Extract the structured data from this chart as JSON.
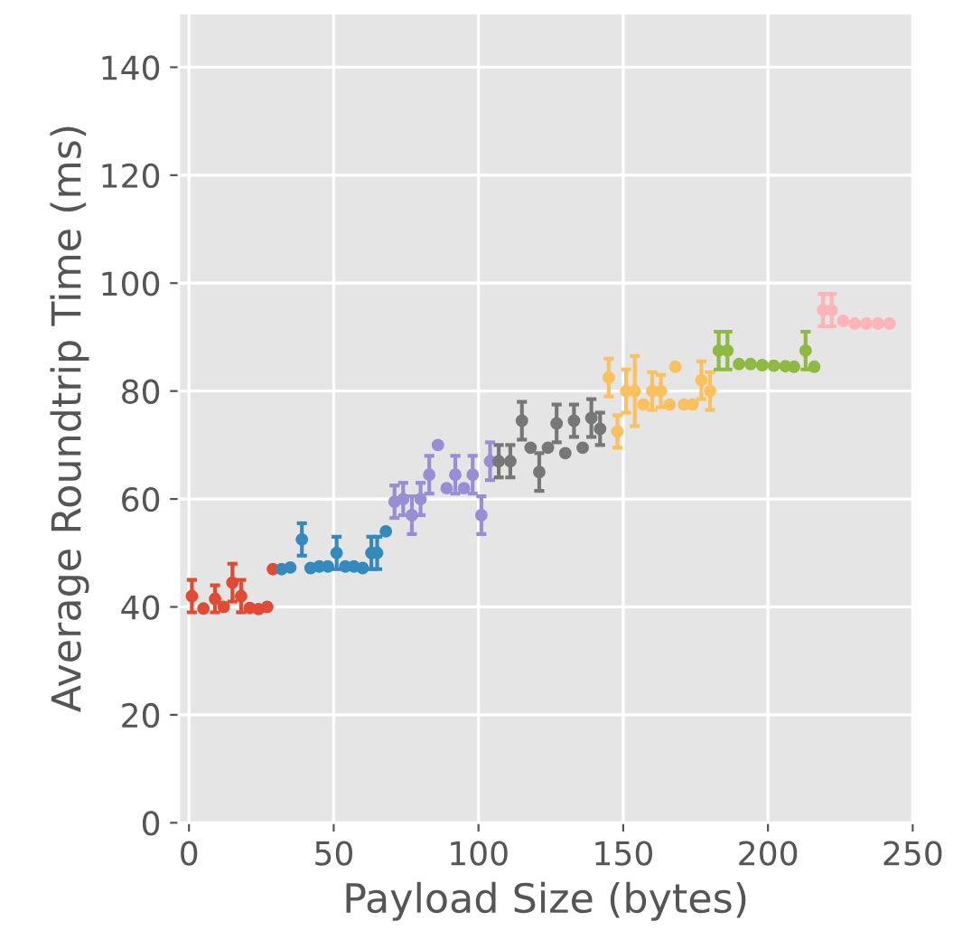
{
  "chart_data": {
    "type": "scatter",
    "xlabel": "Payload Size (bytes)",
    "ylabel": "Average Roundtrip Time (ms)",
    "xlim": [
      -3.5,
      250
    ],
    "ylim": [
      0,
      150
    ],
    "xticks": [
      0,
      50,
      100,
      150,
      200,
      250
    ],
    "yticks": [
      0,
      20,
      40,
      60,
      80,
      100,
      120,
      140
    ],
    "grid": true,
    "marker": "circle",
    "series": [
      {
        "color": "#e24a33",
        "x": [
          1,
          5,
          9,
          12,
          15,
          18,
          21,
          24,
          27,
          29
        ],
        "values": [
          42,
          39.7,
          41.5,
          40,
          44.5,
          42,
          39.8,
          39.6,
          40,
          47
        ],
        "errors": [
          3,
          null,
          2.5,
          null,
          3.5,
          3,
          null,
          null,
          null,
          null
        ]
      },
      {
        "color": "#348abd",
        "x": [
          32,
          35,
          39,
          42,
          45,
          48,
          51,
          54,
          57,
          60,
          63,
          65,
          68
        ],
        "values": [
          47,
          47.3,
          52.5,
          47.2,
          47.5,
          47.5,
          50,
          47.5,
          47.5,
          47.2,
          50,
          50,
          54
        ],
        "errors": [
          null,
          null,
          3,
          null,
          null,
          null,
          3,
          null,
          null,
          null,
          3,
          3,
          null
        ]
      },
      {
        "color": "#988ed5",
        "x": [
          71,
          74,
          77,
          80,
          83,
          86,
          89,
          92,
          95,
          98,
          101,
          104
        ],
        "values": [
          59.5,
          60,
          57,
          60,
          64.5,
          70,
          62,
          64.5,
          62,
          64.5,
          57,
          67
        ],
        "errors": [
          3,
          3,
          3.5,
          3,
          3.5,
          null,
          null,
          3.5,
          null,
          3.5,
          3.5,
          3.5
        ]
      },
      {
        "color": "#777777",
        "x": [
          107,
          111,
          115,
          118,
          121,
          124,
          127,
          130,
          133,
          136,
          139,
          142
        ],
        "values": [
          67,
          67,
          74.5,
          69.5,
          65,
          69.5,
          74,
          68.5,
          74.5,
          69.5,
          75,
          73
        ],
        "errors": [
          3,
          3,
          3.5,
          null,
          3.5,
          null,
          3.5,
          null,
          3,
          null,
          3.5,
          3
        ]
      },
      {
        "color": "#fbc15e",
        "x": [
          145,
          148,
          151,
          154,
          157,
          160,
          163,
          166,
          168,
          171,
          174,
          177,
          180
        ],
        "values": [
          82.5,
          72.5,
          80,
          80,
          77.5,
          80,
          80,
          77.5,
          84.5,
          77.5,
          77.5,
          82,
          80
        ],
        "errors": [
          3.5,
          3,
          4,
          6.5,
          null,
          3.5,
          3,
          null,
          null,
          null,
          null,
          3.5,
          3.5
        ]
      },
      {
        "color": "#8eba42",
        "x": [
          183,
          186,
          190,
          194,
          198,
          202,
          206,
          209,
          213,
          216
        ],
        "values": [
          87.5,
          87.5,
          85,
          85,
          84.8,
          84.7,
          84.6,
          84.5,
          87.5,
          84.5
        ],
        "errors": [
          3.5,
          3.5,
          null,
          null,
          null,
          null,
          null,
          null,
          3.5,
          null
        ]
      },
      {
        "color": "#ffb5b8",
        "x": [
          219,
          222,
          226,
          230,
          234,
          238,
          242
        ],
        "values": [
          95,
          95,
          93,
          92.5,
          92.5,
          92.5,
          92.5
        ],
        "errors": [
          3,
          3,
          null,
          null,
          null,
          null,
          null
        ]
      }
    ]
  }
}
